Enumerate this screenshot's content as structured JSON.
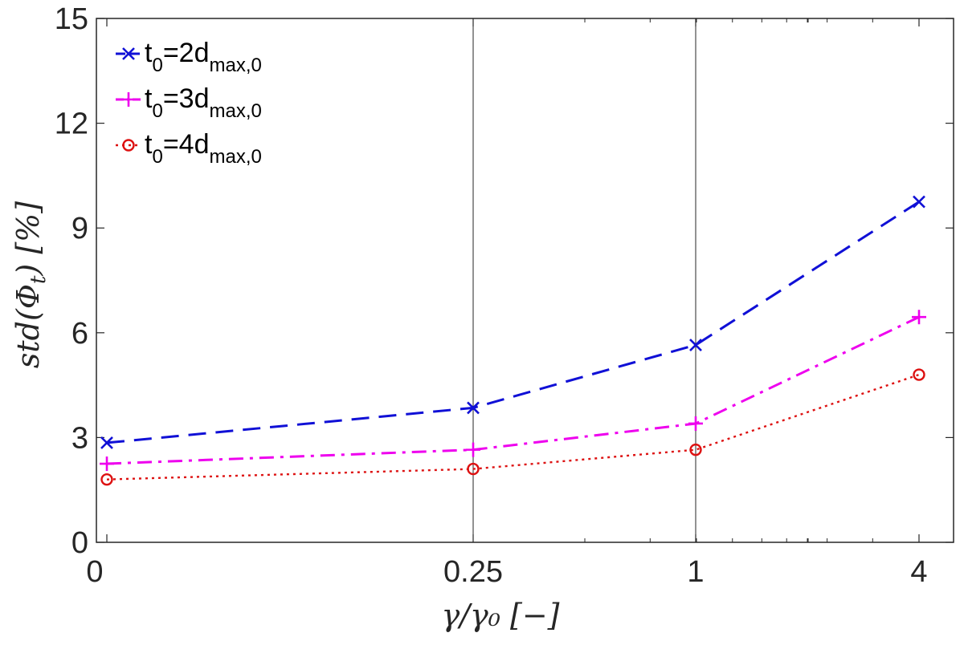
{
  "chart_data": {
    "type": "line",
    "x_scale": "log",
    "x_values": [
      0,
      0.25,
      1,
      4
    ],
    "x_tick_labels": [
      "0",
      "0.25",
      "1",
      "4"
    ],
    "xlabel": "γ/γ₀ [−]",
    "ylabel": "std(Φ_t) [%]",
    "ylabel_parts": {
      "pre": "std(Φ",
      "sub": "t",
      "post": ") [%]"
    },
    "ylim": [
      0,
      15
    ],
    "y_ticks": [
      0,
      3,
      6,
      9,
      12,
      15
    ],
    "y_tick_labels": [
      "0",
      "3",
      "6",
      "9",
      "12",
      "15"
    ],
    "grid": "vertical lines at 0.25 and 1",
    "legend_position": "top-left",
    "series": [
      {
        "name": "t0=2dmax,0",
        "label_parts": {
          "a": "t",
          "a_sub": "0",
          "b": "=2d",
          "b_sub": "max,0"
        },
        "values": [
          2.85,
          3.85,
          5.65,
          9.75
        ],
        "color": "#1010d6",
        "marker": "x",
        "line_style": "dashed"
      },
      {
        "name": "t0=3dmax,0",
        "label_parts": {
          "a": "t",
          "a_sub": "0",
          "b": "=3d",
          "b_sub": "max,0"
        },
        "values": [
          2.25,
          2.65,
          3.4,
          6.45
        ],
        "color": "#ee00ee",
        "marker": "+",
        "line_style": "dash-dot"
      },
      {
        "name": "t0=4dmax,0",
        "label_parts": {
          "a": "t",
          "a_sub": "0",
          "b": "=4d",
          "b_sub": "max,0"
        },
        "values": [
          1.8,
          2.1,
          2.65,
          4.8
        ],
        "color": "#dd1111",
        "marker": "o",
        "line_style": "dotted"
      }
    ]
  }
}
